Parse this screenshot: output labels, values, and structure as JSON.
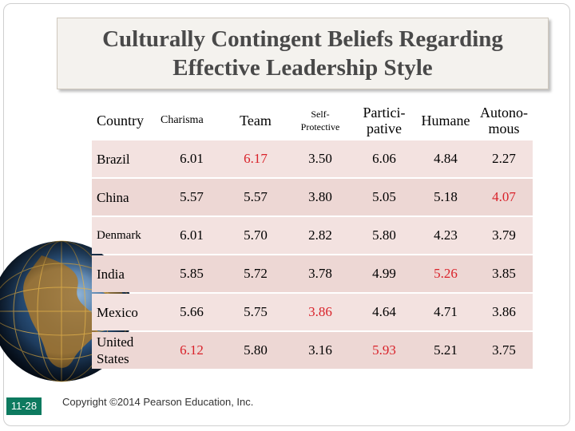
{
  "title": {
    "line1": "Culturally Contingent Beliefs Regarding",
    "line2": "Effective Leadership Style"
  },
  "table": {
    "headers": [
      {
        "line1": "Country",
        "line2": ""
      },
      {
        "line1": "Charisma",
        "line2": ""
      },
      {
        "line1": "Team",
        "line2": ""
      },
      {
        "line1": "Self-",
        "line2": "Protective"
      },
      {
        "line1": "Partici-",
        "line2": "pative"
      },
      {
        "line1": "Humane",
        "line2": ""
      },
      {
        "line1": "Autono-",
        "line2": "mous"
      }
    ],
    "rows": [
      {
        "country": "Brazil",
        "values": [
          "6.01",
          "6.17",
          "3.50",
          "6.06",
          "4.84",
          "2.27"
        ],
        "highlight": [
          false,
          true,
          false,
          false,
          false,
          false
        ]
      },
      {
        "country": "China",
        "values": [
          "5.57",
          "5.57",
          "3.80",
          "5.05",
          "5.18",
          "4.07"
        ],
        "highlight": [
          false,
          false,
          false,
          false,
          false,
          true
        ]
      },
      {
        "country": "Denmark",
        "values": [
          "6.01",
          "5.70",
          "2.82",
          "5.80",
          "4.23",
          "3.79"
        ],
        "highlight": [
          false,
          false,
          false,
          false,
          false,
          false
        ]
      },
      {
        "country": "India",
        "values": [
          "5.85",
          "5.72",
          "3.78",
          "4.99",
          "5.26",
          "3.85"
        ],
        "highlight": [
          false,
          false,
          false,
          false,
          true,
          false
        ]
      },
      {
        "country": "Mexico",
        "values": [
          "5.66",
          "5.75",
          "3.86",
          "4.64",
          "4.71",
          "3.86"
        ],
        "highlight": [
          false,
          false,
          true,
          false,
          false,
          false
        ]
      },
      {
        "country": "United States",
        "values": [
          "6.12",
          "5.80",
          "3.16",
          "5.93",
          "5.21",
          "3.75"
        ],
        "highlight": [
          true,
          false,
          false,
          true,
          false,
          false
        ]
      }
    ]
  },
  "colors": {
    "highlight": "#d9222a",
    "row_light": "#f3e2e0",
    "row_dark": "#edd7d4",
    "slide_number_bg": "#0d7a5f"
  },
  "slide_number": "11-28",
  "copyright": "Copyright ©2014 Pearson Education, Inc.",
  "icons": {
    "globe": "globe-icon"
  }
}
